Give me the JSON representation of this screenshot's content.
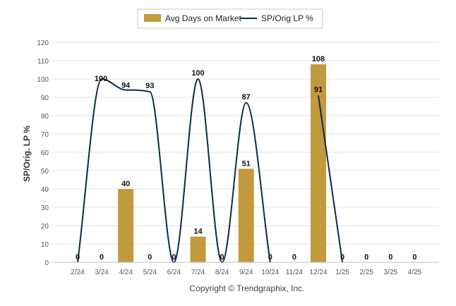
{
  "chart_data": {
    "type": "bar",
    "categories": [
      "2/24",
      "3/24",
      "4/24",
      "5/24",
      "6/24",
      "7/24",
      "8/24",
      "9/24",
      "10/24",
      "11/24",
      "12/24",
      "1/25",
      "2/25",
      "3/25",
      "4/25"
    ],
    "series": [
      {
        "name": "Avg Days on Market",
        "kind": "bar",
        "color": "#c19a3e",
        "values": [
          0,
          0,
          40,
          0,
          0,
          14,
          0,
          51,
          0,
          0,
          108,
          0,
          0,
          0,
          0
        ],
        "labels": [
          "0",
          "0",
          "40",
          "0",
          "0",
          "14",
          "0",
          "51",
          "0",
          "0",
          "108",
          "0",
          "0",
          "0",
          "0"
        ]
      },
      {
        "name": "SP/Orig LP %",
        "kind": "line",
        "smooth": true,
        "color": "#0d2a4b",
        "values": [
          0,
          100,
          94,
          93,
          0,
          100,
          0,
          87,
          0,
          null,
          91,
          0,
          null,
          null,
          null
        ],
        "labels": [
          "",
          "100",
          "94",
          "93",
          "",
          "100",
          "",
          "87",
          "",
          "",
          "91",
          "",
          "",
          "",
          ""
        ]
      }
    ],
    "ylabel": "SP/Orig. LP %",
    "xlabel": "",
    "ylim": [
      0,
      120
    ],
    "yticks": [
      0,
      10,
      20,
      30,
      40,
      50,
      60,
      70,
      80,
      90,
      100,
      110,
      120
    ],
    "grid": true,
    "legend_position": "top-center"
  },
  "legend": {
    "bar_label": "Avg Days on Market",
    "line_label": "SP/Orig LP %"
  },
  "footer": {
    "copyright": "Copyright © Trendgraphix, Inc."
  }
}
